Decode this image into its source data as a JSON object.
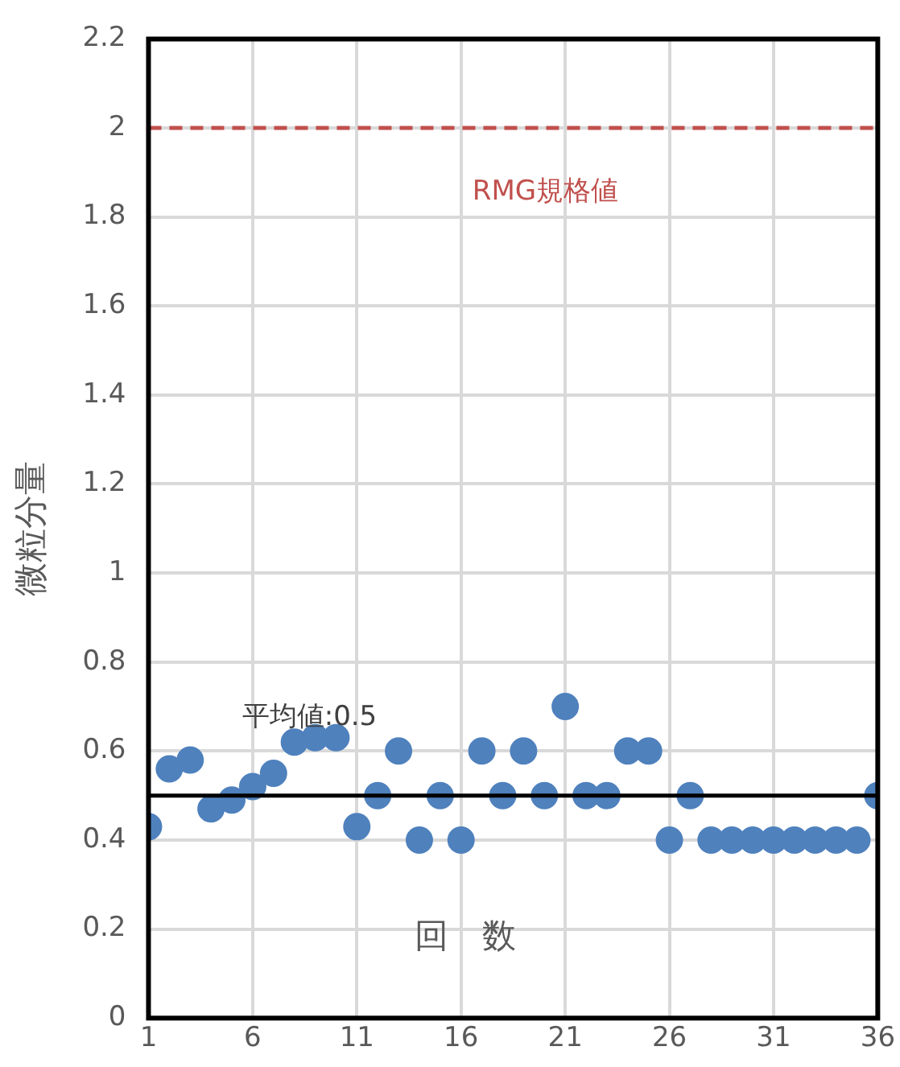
{
  "chart_data": {
    "type": "scatter",
    "xlabel": "回　数",
    "ylabel": "微粒分量",
    "x": [
      1,
      2,
      3,
      4,
      5,
      6,
      7,
      8,
      9,
      10,
      11,
      12,
      13,
      14,
      15,
      16,
      17,
      18,
      19,
      20,
      21,
      22,
      23,
      24,
      25,
      26,
      27,
      28,
      29,
      30,
      31,
      32,
      33,
      34,
      35,
      36
    ],
    "series": [
      {
        "color": "#4f81bd",
        "values": [
          0.43,
          0.56,
          0.58,
          0.47,
          0.49,
          0.52,
          0.55,
          0.62,
          0.63,
          0.63,
          0.43,
          0.5,
          0.6,
          0.4,
          0.5,
          0.4,
          0.6,
          0.5,
          0.6,
          0.5,
          0.7,
          0.5,
          0.5,
          0.6,
          0.6,
          0.4,
          0.5,
          0.4,
          0.4,
          0.4,
          0.4,
          0.4,
          0.4,
          0.4,
          0.4,
          0.5
        ]
      }
    ],
    "xlim": [
      1,
      36
    ],
    "xticks": [
      1,
      6,
      11,
      16,
      21,
      26,
      31,
      36
    ],
    "ylim": [
      0,
      2.2
    ],
    "yticks": [
      0,
      0.2,
      0.4,
      0.6,
      0.8,
      1,
      1.2,
      1.4,
      1.6,
      1.8,
      2,
      2.2
    ],
    "ref_lines": [
      {
        "axis": "y",
        "value": 2,
        "label": "RMG規格値",
        "color": "#c0504d",
        "line_style": "dashed"
      },
      {
        "axis": "y",
        "value": 0.5,
        "label": "平均値:0.5",
        "color": "#000000",
        "line_style": "solid"
      }
    ],
    "grid": true,
    "legend": false,
    "marker": "circle"
  }
}
